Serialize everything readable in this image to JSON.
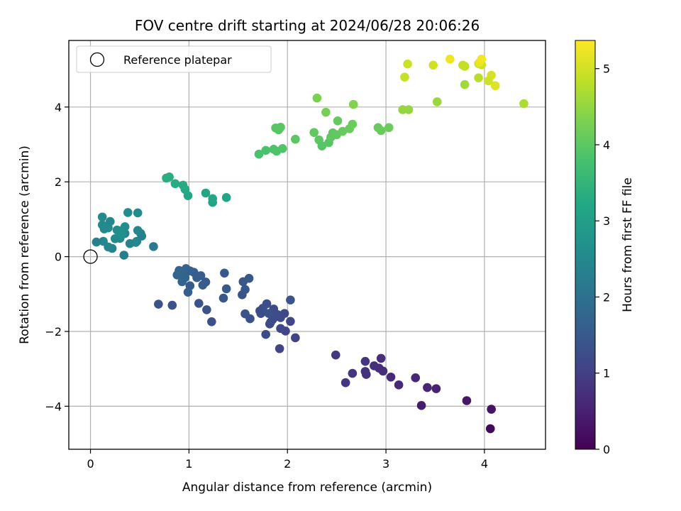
{
  "chart_data": {
    "type": "scatter",
    "title": "FOV centre drift starting at 2024/06/28 20:06:26",
    "xlabel": "Angular distance from reference (arcmin)",
    "ylabel": "Rotation from reference (arcmin)",
    "xlim": [
      -0.22,
      4.62
    ],
    "ylim": [
      -5.15,
      5.78
    ],
    "xticks": [
      0,
      1,
      2,
      3,
      4
    ],
    "yticks": [
      -4,
      -2,
      0,
      2,
      4
    ],
    "grid": true,
    "legend": {
      "placement": "upper-left",
      "entries": [
        "Reference platepar"
      ]
    },
    "colormap": "viridis",
    "colorbar": {
      "label": "Hours from first FF file",
      "range": [
        0,
        5.37
      ],
      "ticks": [
        0,
        1,
        2,
        3,
        4,
        5
      ]
    },
    "reference_point": {
      "x": 0,
      "y": 0
    },
    "series": [
      {
        "x": [
          4.06,
          4.07,
          3.82,
          3.36,
          3.51,
          3.42,
          3.3,
          3.13,
          3.05,
          2.97,
          2.93,
          2.95,
          2.88,
          2.8,
          2.79,
          2.79,
          2.66,
          2.59,
          2.49,
          1.92,
          2.08,
          1.98,
          2.03,
          1.93,
          1.83,
          1.88,
          1.97,
          1.93,
          1.86,
          1.82,
          1.9,
          1.78,
          1.73,
          1.85,
          1.75,
          1.72,
          1.79,
          1.81,
          1.62,
          1.57,
          1.54,
          1.55,
          2.03,
          1.57,
          1.61,
          1.35,
          1.38,
          1.36,
          1.23,
          1.18,
          1.1,
          1.01,
          0.69,
          0.83,
          1.17,
          1.14,
          1.05,
          0.99,
          0.96,
          0.93,
          0.92,
          0.9,
          0.97,
          1.08,
          1.12,
          1.01,
          0.95,
          0.88,
          0.91,
          0.94,
          0.64,
          0.52,
          0.51,
          0.47,
          0.48,
          0.46,
          0.48,
          0.34,
          0.4,
          0.38,
          0.35,
          0.3,
          0.27,
          0.25,
          0.22,
          0.18,
          0.2,
          0.28,
          0.35,
          0.32,
          0.18,
          0.13,
          0.14,
          0.12,
          0.12,
          0.06,
          1.24,
          1.38,
          1.17,
          1.24,
          0.99,
          0.96,
          0.94,
          0.86,
          0.8,
          0.77,
          1.71,
          1.78,
          1.86,
          1.89,
          1.95,
          2.08,
          1.88,
          1.91,
          1.93,
          2.27,
          2.32,
          2.35,
          2.42,
          2.46,
          2.44,
          2.51,
          2.56,
          2.63,
          2.66,
          2.92,
          2.95,
          3.03,
          2.5,
          2.3,
          2.39,
          2.67,
          3.17,
          3.23,
          3.52,
          3.8,
          3.94,
          4.07,
          4.11,
          4.4,
          3.94,
          3.97,
          3.8,
          3.78,
          3.65,
          3.48,
          3.22,
          3.19,
          3.95,
          3.97,
          4.04
        ],
        "y": [
          -4.6,
          -4.08,
          -3.85,
          -3.98,
          -3.53,
          -3.5,
          -3.24,
          -3.43,
          -3.22,
          -3.06,
          -2.98,
          -2.72,
          -2.92,
          -3.15,
          -3.07,
          -2.8,
          -3.12,
          -3.37,
          -2.63,
          -2.46,
          -2.17,
          -1.99,
          -1.73,
          -1.92,
          -1.75,
          -1.6,
          -1.52,
          -1.63,
          -1.4,
          -1.8,
          -1.55,
          -2.08,
          -1.52,
          -1.68,
          -1.38,
          -1.45,
          -1.26,
          -1.52,
          -1.66,
          -1.53,
          -1.02,
          -0.67,
          -1.16,
          -0.88,
          -0.58,
          -1.11,
          -0.86,
          -0.44,
          -1.74,
          -1.42,
          -1.25,
          -0.78,
          -1.27,
          -1.3,
          -0.68,
          -0.76,
          -0.42,
          -0.95,
          -0.56,
          -0.67,
          -0.47,
          -0.37,
          -0.32,
          -0.56,
          -0.51,
          -0.38,
          -0.47,
          -0.49,
          -0.4,
          -0.61,
          0.27,
          0.55,
          0.62,
          0.41,
          0.7,
          0.38,
          1.17,
          0.04,
          0.35,
          1.18,
          0.62,
          0.49,
          0.71,
          0.48,
          0.22,
          0.77,
          0.94,
          0.7,
          0.8,
          0.59,
          0.26,
          0.41,
          0.74,
          0.85,
          1.06,
          0.39,
          1.45,
          1.58,
          1.7,
          1.55,
          1.63,
          1.8,
          1.91,
          1.95,
          2.13,
          2.1,
          2.74,
          2.84,
          2.87,
          2.82,
          2.89,
          3.14,
          3.44,
          3.39,
          3.46,
          3.32,
          3.12,
          2.96,
          3.05,
          3.31,
          3.19,
          3.63,
          3.35,
          3.42,
          3.54,
          3.45,
          3.37,
          3.45,
          3.26,
          4.24,
          3.86,
          4.07,
          3.93,
          3.93,
          4.14,
          4.6,
          4.78,
          4.85,
          4.57,
          4.09,
          5.16,
          5.13,
          5.09,
          5.12,
          5.28,
          5.12,
          5.15,
          4.8,
          5.19,
          5.28,
          4.7
        ],
        "c": [
          0.12,
          0.28,
          0.32,
          0.4,
          0.52,
          0.55,
          0.6,
          0.62,
          0.65,
          0.68,
          0.7,
          0.72,
          0.74,
          0.76,
          0.78,
          0.8,
          0.82,
          0.84,
          0.88,
          1.08,
          1.1,
          1.12,
          1.14,
          1.15,
          1.16,
          1.17,
          1.18,
          1.2,
          1.21,
          1.22,
          1.23,
          1.24,
          1.25,
          1.26,
          1.27,
          1.28,
          1.3,
          1.31,
          1.33,
          1.35,
          1.4,
          1.45,
          1.42,
          1.44,
          1.46,
          1.48,
          1.49,
          1.5,
          1.32,
          1.36,
          1.37,
          1.55,
          1.38,
          1.39,
          1.52,
          1.58,
          1.6,
          1.62,
          1.65,
          1.67,
          1.68,
          1.7,
          1.72,
          1.6,
          1.58,
          1.66,
          1.69,
          1.71,
          1.73,
          1.74,
          2.2,
          2.3,
          2.35,
          2.4,
          2.45,
          2.48,
          2.55,
          2.3,
          2.38,
          2.6,
          2.42,
          2.5,
          2.52,
          2.54,
          2.4,
          2.56,
          2.45,
          2.58,
          2.62,
          2.64,
          2.45,
          2.48,
          2.5,
          2.52,
          2.55,
          2.35,
          3.1,
          3.12,
          3.15,
          3.18,
          3.2,
          3.25,
          3.28,
          3.3,
          3.32,
          3.35,
          3.8,
          3.82,
          3.85,
          3.87,
          3.9,
          4.0,
          3.95,
          3.96,
          3.98,
          4.05,
          4.0,
          3.92,
          3.93,
          4.02,
          4.03,
          4.08,
          4.1,
          4.12,
          4.14,
          4.1,
          4.12,
          4.15,
          4.05,
          4.3,
          4.25,
          4.35,
          4.5,
          4.52,
          4.55,
          4.6,
          4.8,
          5.05,
          5.1,
          4.7,
          5.0,
          4.95,
          4.85,
          4.88,
          5.25,
          5.0,
          4.95,
          4.9,
          5.2,
          5.3,
          4.98
        ]
      }
    ]
  }
}
